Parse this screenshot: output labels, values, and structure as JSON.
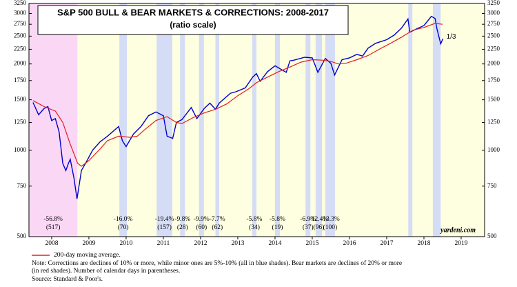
{
  "chart_data": {
    "type": "line",
    "title": "S&P 500 BULL & BEAR MARKETS & CORRECTIONS: 2008-2017",
    "subtitle": "(ratio scale)",
    "log_scale": true,
    "ylim": [
      500,
      3250
    ],
    "yticks": [
      500,
      750,
      1000,
      1250,
      1500,
      1750,
      2000,
      2250,
      2500,
      2750,
      3000,
      3250
    ],
    "xlim": [
      2007.89,
      2020.13
    ],
    "xticks": [
      {
        "value": 2008.5,
        "label": "2008"
      },
      {
        "value": 2009.5,
        "label": "2009"
      },
      {
        "value": 2010.5,
        "label": "2010"
      },
      {
        "value": 2011.5,
        "label": "2011"
      },
      {
        "value": 2012.5,
        "label": "2012"
      },
      {
        "value": 2013.5,
        "label": "2013"
      },
      {
        "value": 2014.5,
        "label": "2014"
      },
      {
        "value": 2015.5,
        "label": "2015"
      },
      {
        "value": 2016.5,
        "label": "2016"
      },
      {
        "value": 2017.5,
        "label": "2017"
      },
      {
        "value": 2018.5,
        "label": "2018"
      },
      {
        "value": 2019.5,
        "label": "2019"
      }
    ],
    "background_color": "#fefee0",
    "series": [
      {
        "color": "#0000cc",
        "x": [
          2008.0,
          2008.15,
          2008.3,
          2008.4,
          2008.5,
          2008.6,
          2008.7,
          2008.8,
          2008.88,
          2008.95,
          2009.0,
          2009.1,
          2009.18,
          2009.3,
          2009.45,
          2009.6,
          2009.8,
          2010.0,
          2010.3,
          2010.4,
          2010.5,
          2010.7,
          2010.9,
          2011.1,
          2011.3,
          2011.5,
          2011.6,
          2011.75,
          2011.85,
          2012.0,
          2012.25,
          2012.4,
          2012.6,
          2012.75,
          2012.9,
          2013.0,
          2013.3,
          2013.45,
          2013.7,
          2013.9,
          2014.0,
          2014.1,
          2014.3,
          2014.5,
          2014.8,
          2014.9,
          2015.0,
          2015.3,
          2015.5,
          2015.65,
          2015.85,
          2016.0,
          2016.1,
          2016.3,
          2016.5,
          2016.7,
          2016.85,
          2017.0,
          2017.2,
          2017.5,
          2017.7,
          2017.9,
          2018.07,
          2018.12,
          2018.3,
          2018.5,
          2018.7,
          2018.8,
          2018.85,
          2018.95,
          2019.01
        ],
        "values": [
          1468,
          1330,
          1400,
          1420,
          1270,
          1290,
          1160,
          900,
          850,
          900,
          930,
          800,
          677,
          850,
          920,
          1000,
          1070,
          1120,
          1210,
          1080,
          1030,
          1140,
          1210,
          1320,
          1360,
          1320,
          1120,
          1100,
          1250,
          1280,
          1410,
          1290,
          1400,
          1460,
          1390,
          1460,
          1580,
          1600,
          1650,
          1800,
          1850,
          1740,
          1880,
          1970,
          1870,
          2050,
          2060,
          2110,
          2100,
          1870,
          2090,
          2010,
          1830,
          2070,
          2100,
          2160,
          2130,
          2270,
          2360,
          2430,
          2520,
          2670,
          2870,
          2580,
          2650,
          2720,
          2930,
          2880,
          2650,
          2350,
          2447
        ]
      },
      {
        "name": "200-day moving average.",
        "color": "#e02020",
        "x": [
          2008.0,
          2008.3,
          2008.6,
          2008.8,
          2009.0,
          2009.2,
          2009.3,
          2009.5,
          2009.8,
          2010.0,
          2010.3,
          2010.6,
          2010.8,
          2011.0,
          2011.3,
          2011.6,
          2011.85,
          2012.0,
          2012.3,
          2012.6,
          2012.9,
          2013.2,
          2013.5,
          2013.8,
          2014.0,
          2014.3,
          2014.6,
          2014.9,
          2015.2,
          2015.5,
          2015.8,
          2016.0,
          2016.2,
          2016.4,
          2016.7,
          2017.0,
          2017.3,
          2017.6,
          2017.9,
          2018.2,
          2018.5,
          2018.8,
          2019.0
        ],
        "values": [
          1490,
          1420,
          1370,
          1250,
          1050,
          900,
          880,
          920,
          1010,
          1080,
          1120,
          1110,
          1120,
          1180,
          1270,
          1310,
          1250,
          1240,
          1300,
          1350,
          1390,
          1450,
          1550,
          1640,
          1720,
          1800,
          1880,
          1950,
          2030,
          2070,
          2060,
          2040,
          2000,
          2010,
          2070,
          2140,
          2250,
          2360,
          2480,
          2620,
          2680,
          2770,
          2750
        ]
      }
    ],
    "bear_color": "#fbd7f6",
    "correction_color": "#d5dcf5",
    "bear_markets": [
      {
        "start": 2007.89,
        "end": 2009.19,
        "change": "-56.8%",
        "days": "(517)"
      }
    ],
    "corrections": [
      {
        "start": 2010.32,
        "end": 2010.52,
        "change": "-16.0%",
        "days": "(70)"
      },
      {
        "start": 2011.32,
        "end": 2011.74,
        "change": "-19.4%",
        "days": "(157)"
      },
      {
        "start": 2011.95,
        "end": 2012.08,
        "change": "-9.8%",
        "days": "(28)"
      },
      {
        "start": 2012.46,
        "end": 2012.59,
        "change": "-9.9%",
        "days": "(60)"
      },
      {
        "start": 2012.9,
        "end": 2013.0,
        "change": "-7.7%",
        "days": "(62)"
      },
      {
        "start": 2013.89,
        "end": 2014.0,
        "change": "-5.8%",
        "days": "(34)"
      },
      {
        "start": 2014.5,
        "end": 2014.63,
        "change": "-5.8%",
        "days": "(19)"
      },
      {
        "start": 2015.32,
        "end": 2015.45,
        "change": "-6.9%",
        "days": "(37)"
      },
      {
        "start": 2015.59,
        "end": 2015.76,
        "change": "-12.4%",
        "days": "(96)"
      },
      {
        "start": 2015.85,
        "end": 2016.11,
        "change": "-13.3%",
        "days": "(100)"
      },
      {
        "start": 2018.08,
        "end": 2018.19
      },
      {
        "start": 2018.74,
        "end": 2018.95
      }
    ],
    "end_annotation": "1/3",
    "source_label": "yardeni.com",
    "notes": [
      "Note: Corrections are declines of 10% or more, while minor ones are 5%-10% (all in blue shades).  Bear markets are declines of 20% or more",
      "(in red shades). Number of calendar days in parentheses.",
      "Source: Standard & Poor's."
    ]
  }
}
